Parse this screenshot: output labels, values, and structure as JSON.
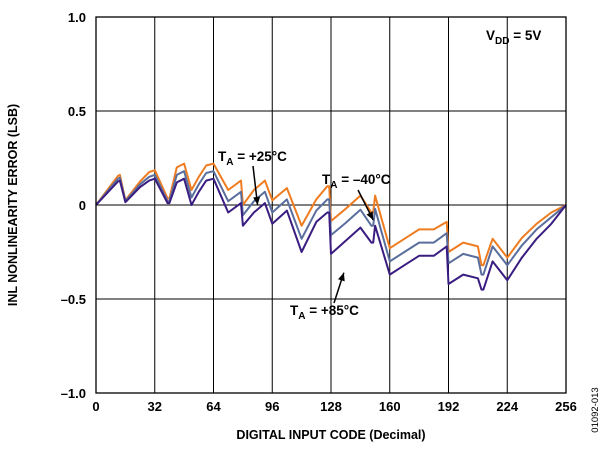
{
  "chart_data": {
    "type": "line",
    "title": "",
    "xlabel": "DIGITAL INPUT CODE (Decimal)",
    "ylabel": "INL NONLINEARITY ERROR (LSB)",
    "xlim": [
      0,
      256
    ],
    "ylim": [
      -1.0,
      1.0
    ],
    "x_ticks": [
      0,
      32,
      64,
      96,
      128,
      160,
      192,
      224,
      256
    ],
    "y_ticks": [
      1.0,
      0.5,
      0,
      -0.5,
      -1.0
    ],
    "x_tick_labels": [
      "0",
      "32",
      "64",
      "96",
      "128",
      "160",
      "192",
      "224",
      "256"
    ],
    "y_tick_labels": [
      "1.0",
      "0.5",
      "0",
      "–0.5",
      "–1.0"
    ],
    "grid": true,
    "x": [
      0,
      12,
      13,
      16,
      24,
      29,
      32,
      39,
      40,
      44,
      48,
      52,
      56,
      60,
      64,
      72,
      79,
      80,
      86,
      92,
      96,
      104,
      112,
      120,
      126,
      127,
      128,
      136,
      144,
      150,
      151,
      152,
      160,
      168,
      176,
      184,
      191,
      192,
      200,
      208,
      210,
      211,
      216,
      224,
      232,
      240,
      248,
      256
    ],
    "series": [
      {
        "color": "#ee7d22",
        "values": [
          0,
          0.155,
          0.16,
          0.025,
          0.125,
          0.175,
          0.185,
          0.035,
          0.035,
          0.2,
          0.22,
          0.08,
          0.15,
          0.21,
          0.22,
          0.08,
          0.13,
          0.0,
          0.08,
          0.13,
          0.025,
          0.09,
          -0.11,
          0.03,
          0.1,
          0.1,
          -0.085,
          -0.02,
          0.05,
          -0.04,
          -0.04,
          0.05,
          -0.23,
          -0.18,
          -0.13,
          -0.13,
          -0.09,
          -0.25,
          -0.2,
          -0.22,
          -0.32,
          -0.32,
          -0.18,
          -0.28,
          -0.175,
          -0.1,
          -0.04,
          0.0
        ]
      },
      {
        "color": "#5a6e9e",
        "values": [
          0,
          0.14,
          0.145,
          0.02,
          0.11,
          0.15,
          0.16,
          0.02,
          0.02,
          0.16,
          0.18,
          0.04,
          0.11,
          0.17,
          0.18,
          0.02,
          0.07,
          -0.055,
          0.02,
          0.07,
          -0.04,
          0.03,
          -0.18,
          -0.03,
          0.03,
          0.03,
          -0.16,
          -0.095,
          -0.025,
          -0.11,
          -0.11,
          -0.02,
          -0.3,
          -0.25,
          -0.2,
          -0.2,
          -0.15,
          -0.31,
          -0.26,
          -0.28,
          -0.37,
          -0.37,
          -0.22,
          -0.32,
          -0.215,
          -0.13,
          -0.065,
          0.0
        ]
      },
      {
        "color": "#3a1d80",
        "values": [
          0,
          0.125,
          0.13,
          0.015,
          0.095,
          0.13,
          0.14,
          0.01,
          0.01,
          0.12,
          0.14,
          0.0,
          0.07,
          0.13,
          0.14,
          -0.04,
          0.01,
          -0.11,
          -0.04,
          0.01,
          -0.1,
          -0.03,
          -0.25,
          -0.09,
          -0.04,
          -0.04,
          -0.26,
          -0.19,
          -0.12,
          -0.2,
          -0.2,
          -0.11,
          -0.37,
          -0.32,
          -0.27,
          -0.27,
          -0.22,
          -0.42,
          -0.37,
          -0.39,
          -0.45,
          -0.45,
          -0.3,
          -0.4,
          -0.28,
          -0.18,
          -0.1,
          0.0
        ]
      }
    ],
    "annotations": [
      {
        "main": "T",
        "sub": "A",
        "rest": " = +25°C",
        "point": [
          88,
          0.0
        ]
      },
      {
        "main": "T",
        "sub": "A",
        "rest": " = –40°C",
        "point": [
          151,
          -0.08
        ]
      },
      {
        "main": "T",
        "sub": "A",
        "rest": " = +85°C",
        "point": [
          135,
          -0.36
        ]
      },
      {
        "main": "V",
        "sub": "DD",
        "rest": " = 5V",
        "point": null
      }
    ]
  },
  "figure_id": "01092-013"
}
